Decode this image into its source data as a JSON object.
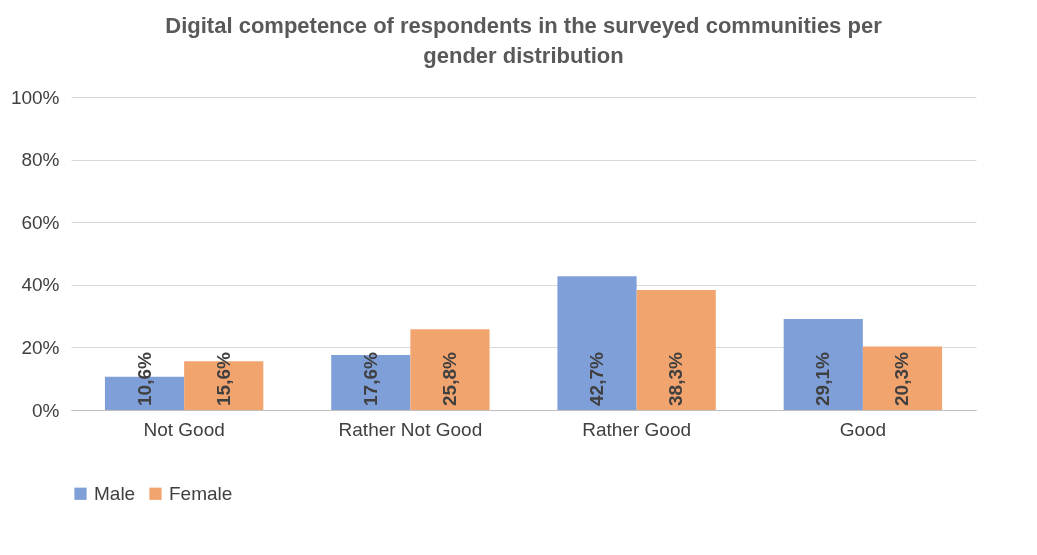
{
  "chart_data": {
    "type": "bar",
    "title": "Digital competence of respondents in the surveyed communities per gender distribution",
    "categories": [
      "Not Good",
      "Rather Not Good",
      "Rather Good",
      "Good"
    ],
    "series": [
      {
        "name": "Male",
        "color": "#7f9fd9",
        "values": [
          10.6,
          17.6,
          42.7,
          29.1
        ],
        "value_labels": [
          "10,6%",
          "17,6%",
          "42,7%",
          "29,1%"
        ]
      },
      {
        "name": "Female",
        "color": "#f2a46e",
        "values": [
          15.6,
          25.8,
          38.3,
          20.3
        ],
        "value_labels": [
          "15,6%",
          "25,8%",
          "38,3%",
          "20,3%"
        ]
      }
    ],
    "ylim": [
      0,
      100
    ],
    "yticks": [
      {
        "value": 0,
        "label": "0%"
      },
      {
        "value": 20,
        "label": "20%"
      },
      {
        "value": 40,
        "label": "40%"
      },
      {
        "value": 60,
        "label": "60%"
      },
      {
        "value": 80,
        "label": "80%"
      },
      {
        "value": 100,
        "label": "100%"
      }
    ],
    "grid": "y",
    "legend": "bottom"
  }
}
